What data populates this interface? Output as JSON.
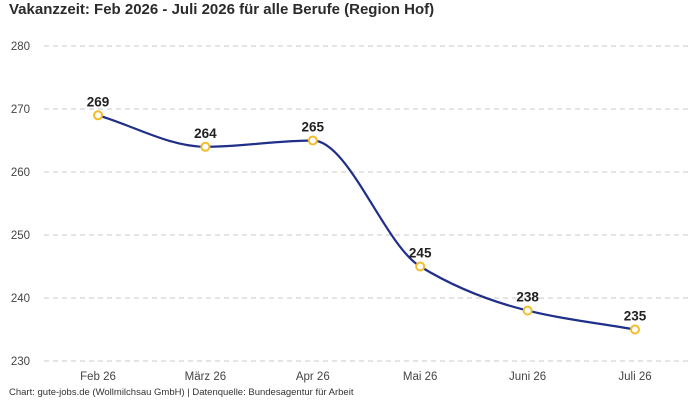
{
  "chart_data": {
    "type": "line",
    "title": "Vakanzzeit: Feb 2026 - Juli 2026 für alle Berufe (Region Hof)",
    "footer": "Chart: gute-jobs.de (Wollmilchsau GmbH) | Datenquelle: Bundesagentur für Arbeit",
    "categories": [
      "Feb 26",
      "März 26",
      "Apr 26",
      "Mai 26",
      "Juni 26",
      "Juli 26"
    ],
    "series": [
      {
        "values": [
          269,
          264,
          265,
          245,
          238,
          235
        ]
      }
    ],
    "ylim": [
      230,
      280
    ],
    "yticks": [
      230,
      240,
      250,
      260,
      270,
      280
    ],
    "grid": true,
    "data_labels": true,
    "colors": {
      "line": "#1f2f8a",
      "marker_fill": "#ffffff",
      "marker_stroke": "#f2bd2b",
      "grid": "#c8c8c8"
    }
  }
}
